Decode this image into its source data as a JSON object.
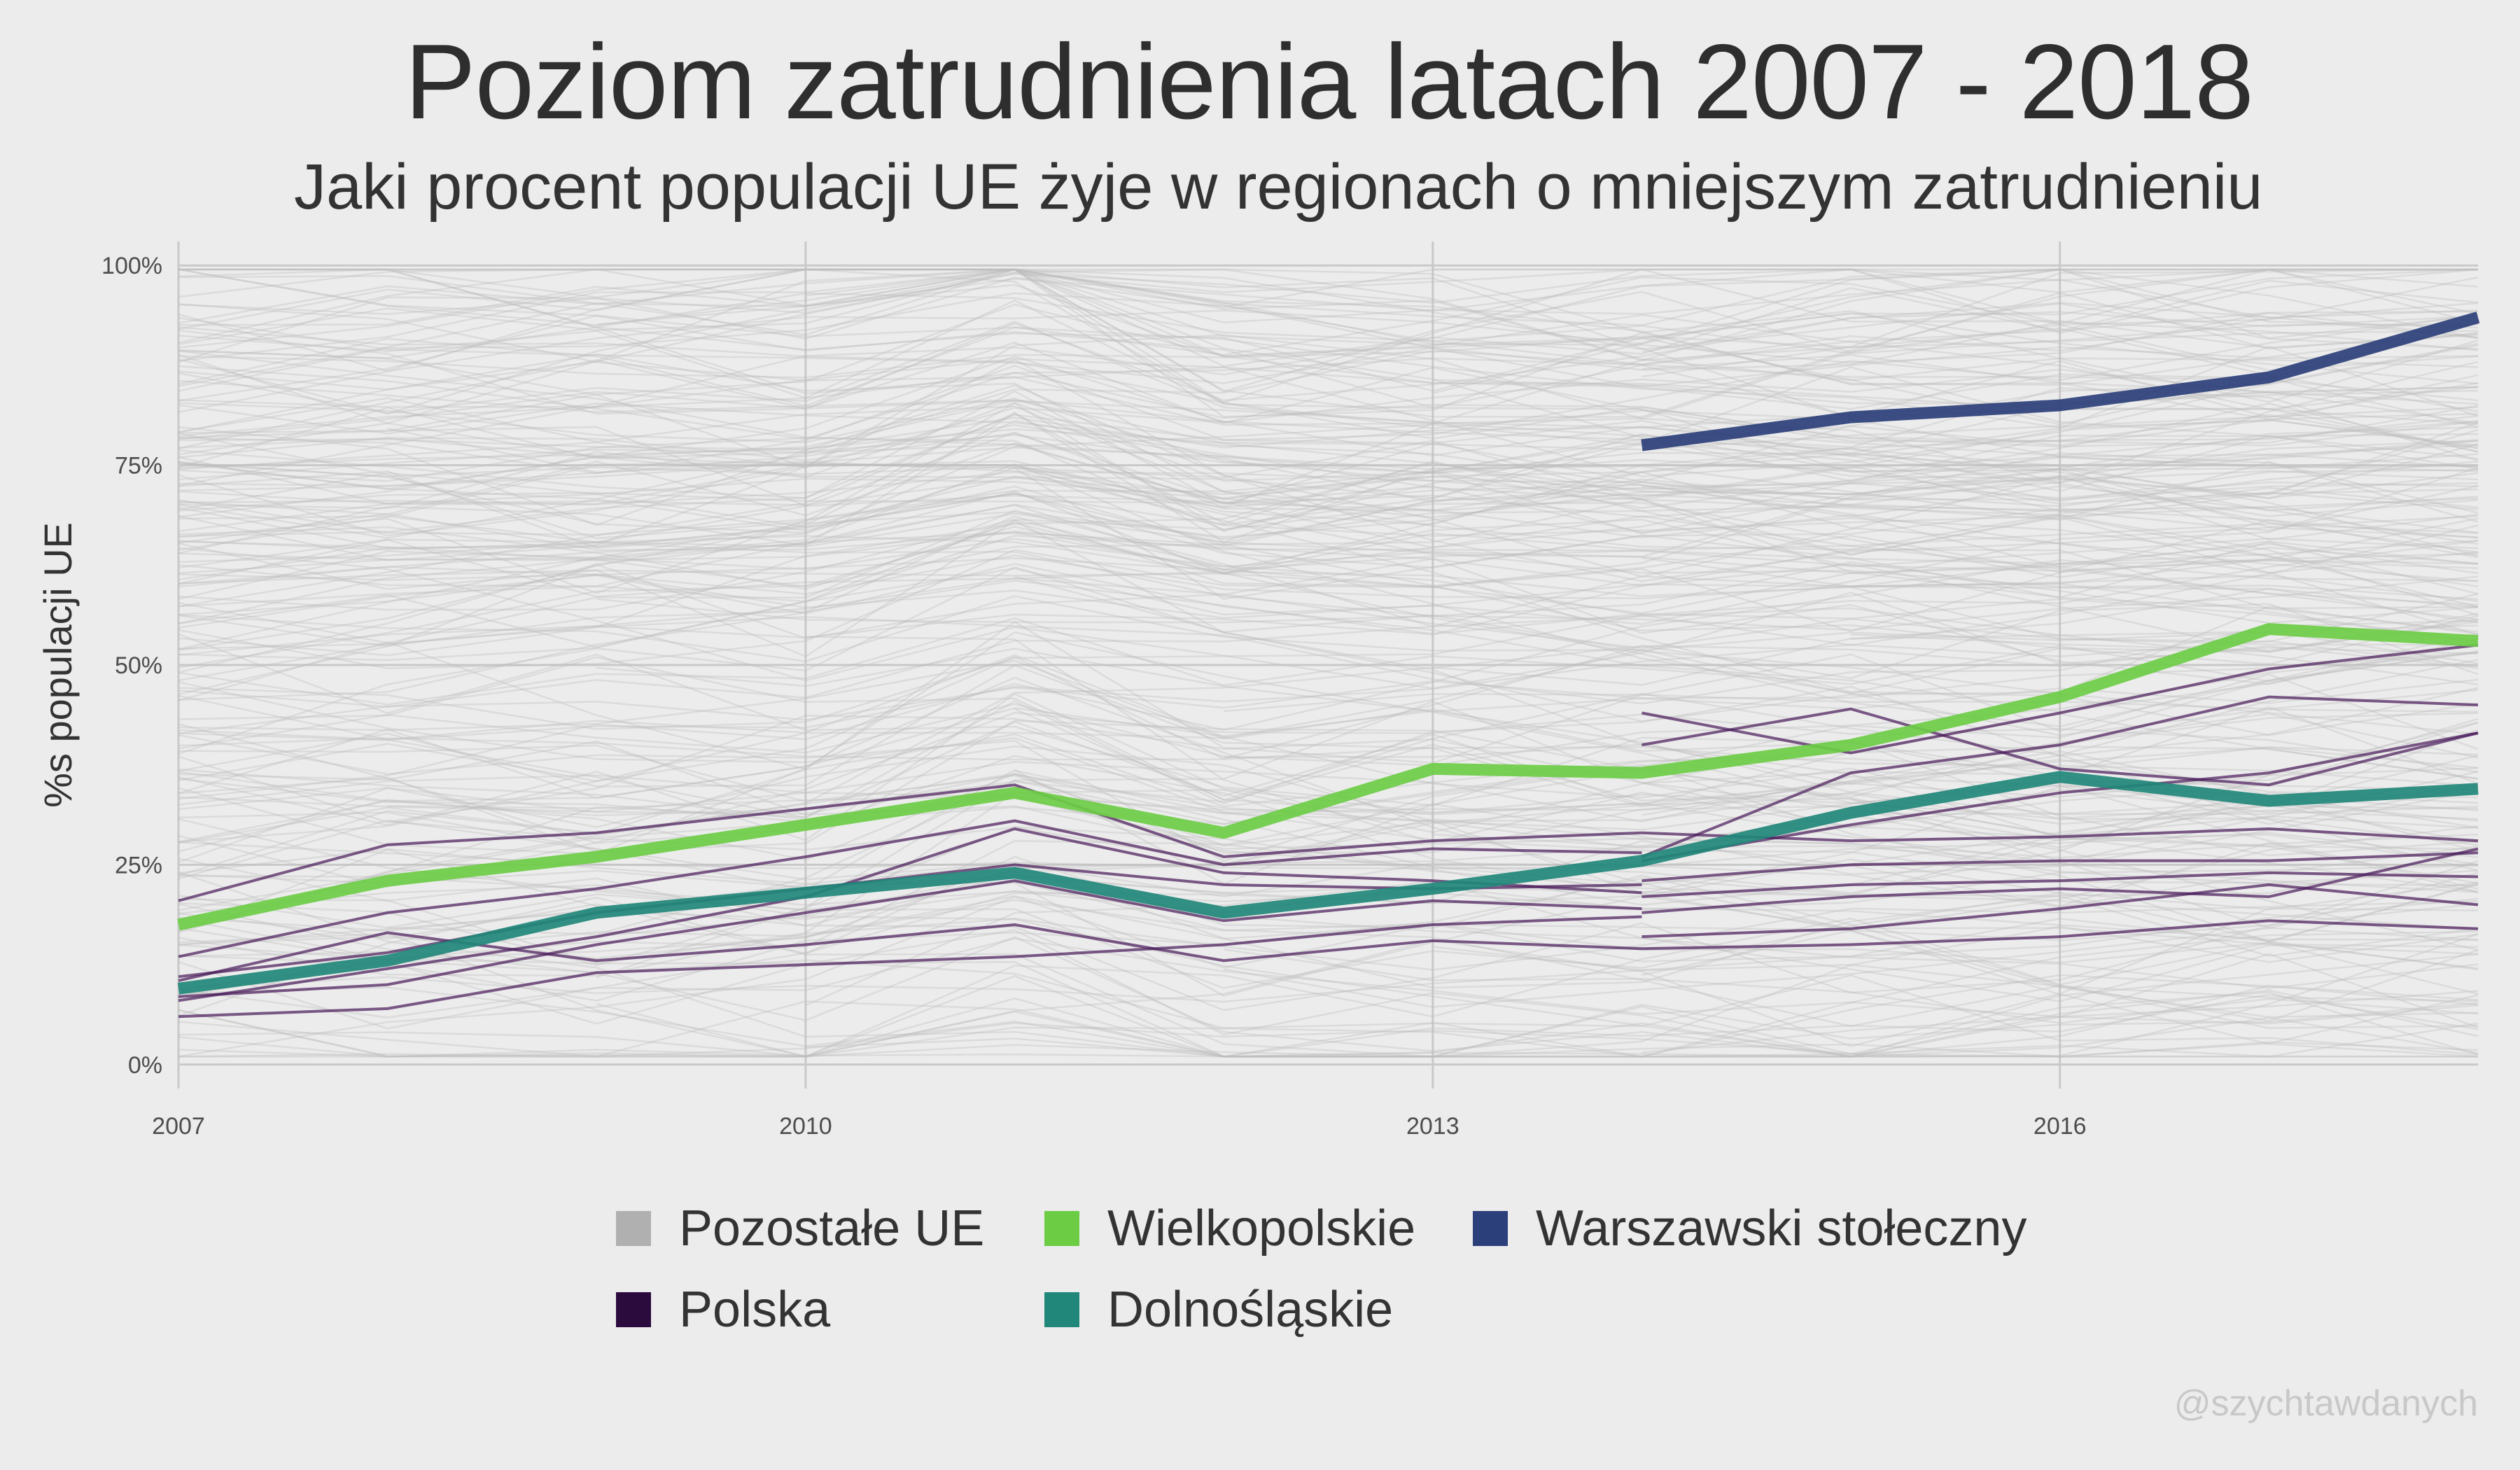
{
  "chart_data": {
    "type": "line",
    "title": "Poziom zatrudnienia latach 2007 - 2018",
    "subtitle": "Jaki procent populacji UE żyje w regionach o mniejszym zatrudnieniu",
    "xlabel": "",
    "ylabel": "%s populacji UE",
    "xlim": [
      2007,
      2018
    ],
    "ylim": [
      -3,
      103
    ],
    "x_ticks": [
      2007,
      2010,
      2013,
      2016
    ],
    "y_ticks": [
      0,
      25,
      50,
      75,
      100
    ],
    "y_tick_labels": [
      "0%",
      "25%",
      "50%",
      "75%",
      "100%"
    ],
    "grid": true,
    "legend_position": "bottom",
    "legend": [
      {
        "label": "Pozostałe UE",
        "color": "#b0b0b0"
      },
      {
        "label": "Wielkopolskie",
        "color": "#6ccd45"
      },
      {
        "label": "Warszawski stołeczny",
        "color": "#2b3f7a"
      },
      {
        "label": "Polska",
        "color": "#2b0a3d"
      },
      {
        "label": "Dolnośląskie",
        "color": "#21877a"
      }
    ],
    "highlighted_series": [
      {
        "name": "Wielkopolskie",
        "color": "#6ccd45",
        "x": [
          2007,
          2008,
          2009,
          2010,
          2011,
          2012,
          2013,
          2014,
          2015,
          2016,
          2017,
          2018
        ],
        "y": [
          17.5,
          23,
          26,
          30,
          34,
          29,
          37,
          36.5,
          40,
          46,
          54.5,
          53
        ]
      },
      {
        "name": "Dolnośląskie",
        "color": "#21877a",
        "x": [
          2007,
          2008,
          2009,
          2010,
          2011,
          2012,
          2013,
          2014,
          2015,
          2016,
          2017,
          2018
        ],
        "y": [
          9.5,
          13,
          19,
          21.5,
          24,
          19,
          22,
          25.5,
          31.5,
          36,
          33,
          34.5
        ]
      },
      {
        "name": "Warszawski stołeczny",
        "color": "#2b3f7a",
        "x": [
          2014,
          2015,
          2016,
          2017,
          2018
        ],
        "y": [
          77.5,
          81,
          82.5,
          86,
          93.5
        ]
      }
    ],
    "polska_series": [
      {
        "x": [
          2007,
          2008,
          2009,
          2010,
          2011,
          2012,
          2013,
          2014
        ],
        "y": [
          20.5,
          27.5,
          29,
          32,
          35,
          26,
          28,
          29
        ]
      },
      {
        "x": [
          2007,
          2008,
          2009,
          2010,
          2011,
          2012,
          2013,
          2014
        ],
        "y": [
          13.5,
          19,
          22,
          26,
          30.5,
          25,
          27,
          26.5
        ]
      },
      {
        "x": [
          2007,
          2008,
          2009,
          2010,
          2011,
          2012,
          2013,
          2014
        ],
        "y": [
          11,
          14,
          19,
          22,
          25,
          22.5,
          22,
          22.5
        ]
      },
      {
        "x": [
          2007,
          2008,
          2009,
          2010,
          2011,
          2012,
          2013,
          2014
        ],
        "y": [
          10.5,
          16.5,
          13,
          15,
          17.5,
          13,
          15.5,
          14.5
        ]
      },
      {
        "x": [
          2007,
          2008,
          2009,
          2010,
          2011,
          2012,
          2013,
          2014
        ],
        "y": [
          8,
          12,
          16,
          21,
          29.5,
          24,
          23,
          21.5
        ]
      },
      {
        "x": [
          2007,
          2008,
          2009,
          2010,
          2011,
          2012,
          2013,
          2014
        ],
        "y": [
          8.5,
          10,
          15,
          19,
          23,
          18,
          20.5,
          19.5
        ]
      },
      {
        "x": [
          2007,
          2008,
          2009,
          2010,
          2011,
          2012,
          2013,
          2014
        ],
        "y": [
          6,
          7,
          11.5,
          12.5,
          13.5,
          15,
          17.5,
          18.5
        ]
      },
      {
        "x": [
          2014,
          2015,
          2016,
          2017,
          2018
        ],
        "y": [
          44,
          39,
          44,
          49.5,
          52.5
        ]
      },
      {
        "x": [
          2014,
          2015,
          2016,
          2017,
          2018
        ],
        "y": [
          40,
          44.5,
          37,
          35,
          41.5
        ]
      },
      {
        "x": [
          2014,
          2015,
          2016,
          2017,
          2018
        ],
        "y": [
          26,
          36.5,
          40,
          46,
          45
        ]
      },
      {
        "x": [
          2014,
          2015,
          2016,
          2017,
          2018
        ],
        "y": [
          29,
          28,
          28.5,
          29.5,
          28
        ]
      },
      {
        "x": [
          2014,
          2015,
          2016,
          2017,
          2018
        ],
        "y": [
          23,
          25,
          25.5,
          25.5,
          26.5
        ]
      },
      {
        "x": [
          2014,
          2015,
          2016,
          2017,
          2018
        ],
        "y": [
          21,
          22.5,
          23,
          24,
          23.5
        ]
      },
      {
        "x": [
          2014,
          2015,
          2016,
          2017,
          2018
        ],
        "y": [
          19,
          21,
          22,
          21,
          27
        ]
      },
      {
        "x": [
          2014,
          2015,
          2016,
          2017,
          2018
        ],
        "y": [
          16,
          17,
          19.5,
          22.5,
          20
        ]
      },
      {
        "x": [
          2014,
          2015,
          2016,
          2017,
          2018
        ],
        "y": [
          14.5,
          15,
          16,
          18,
          17
        ]
      },
      {
        "x": [
          2014,
          2015,
          2016,
          2017,
          2018
        ],
        "y": [
          25.5,
          30,
          34,
          36.5,
          41.5
        ]
      }
    ],
    "background_lines": {
      "label": "Pozostałe UE",
      "count": 260,
      "years": [
        2007,
        2008,
        2009,
        2010,
        2011,
        2012,
        2013,
        2014,
        2015,
        2016,
        2017,
        2018
      ],
      "range": [
        0,
        100
      ]
    }
  },
  "caption": "@szychtawdanych"
}
